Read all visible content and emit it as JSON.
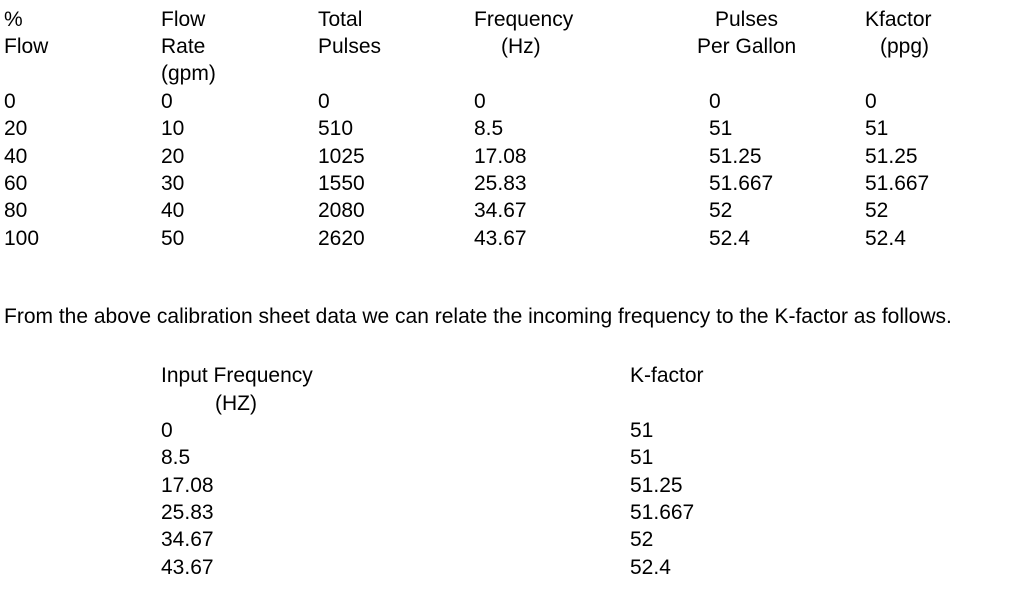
{
  "table1": {
    "headers": [
      [
        "%",
        "Flow"
      ],
      [
        "Flow",
        "Rate",
        "(gpm)"
      ],
      [
        "Total",
        "Pulses"
      ],
      [
        "Frequency",
        "(Hz)"
      ],
      [
        "Pulses",
        "Per Gallon"
      ],
      [
        "Kfactor",
        "(ppg)"
      ]
    ],
    "rows": [
      [
        "0",
        "0",
        "0",
        "0",
        "0",
        "0"
      ],
      [
        "20",
        "10",
        "510",
        "8.5",
        "51",
        "51"
      ],
      [
        "40",
        "20",
        "1025",
        "17.08",
        "51.25",
        "51.25"
      ],
      [
        "60",
        "30",
        "1550",
        "25.83",
        "51.667",
        "51.667"
      ],
      [
        "80",
        "40",
        "2080",
        "34.67",
        "52",
        "52"
      ],
      [
        "100",
        "50",
        "2620",
        "43.67",
        "52.4",
        "52.4"
      ]
    ]
  },
  "paragraph": "From the above calibration sheet data we can relate the incoming frequency to the K-factor as follows.",
  "table2": {
    "headers": [
      [
        "Input Frequency",
        "(HZ)"
      ],
      [
        "K-factor"
      ]
    ],
    "rows": [
      [
        "0",
        "51"
      ],
      [
        "8.5",
        "51"
      ],
      [
        "17.08",
        "51.25"
      ],
      [
        "25.83",
        "51.667"
      ],
      [
        "34.67",
        "52"
      ],
      [
        "43.67",
        "52.4"
      ]
    ]
  }
}
